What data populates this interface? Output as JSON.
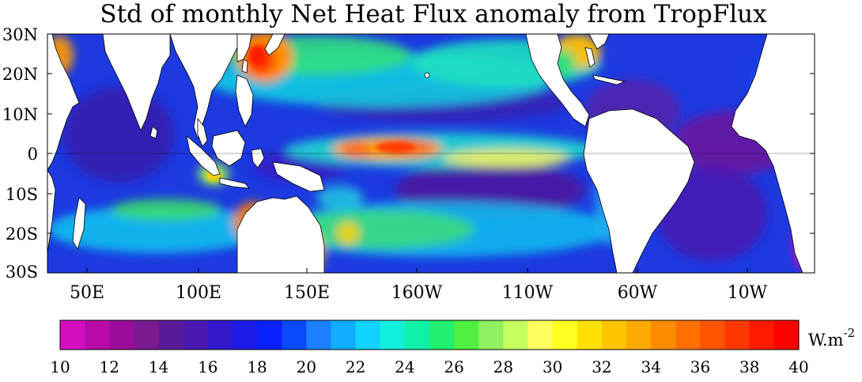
{
  "title": "Std of monthly Net Heat Flux anomaly from TropFlux",
  "map": {
    "lat_labels": [
      "30N",
      "20N",
      "10N",
      "0",
      "10S",
      "20S",
      "30S"
    ],
    "lon_labels": [
      "50E",
      "100E",
      "150E",
      "160W",
      "110W",
      "60W",
      "10W"
    ]
  },
  "colorbar": {
    "ticks": [
      "10",
      "12",
      "14",
      "16",
      "18",
      "20",
      "22",
      "24",
      "26",
      "28",
      "30",
      "32",
      "34",
      "36",
      "38",
      "40"
    ],
    "unit_main": "W.m",
    "unit_exp": "-2",
    "colors": [
      "#d40ec0",
      "#b80aa8",
      "#9c0c9c",
      "#7a1a90",
      "#5a1a98",
      "#4a18b0",
      "#3218cc",
      "#1c1ae6",
      "#0a20ff",
      "#0a4aff",
      "#1a80ff",
      "#10acff",
      "#10d4ff",
      "#10f0dc",
      "#10f0a8",
      "#20f070",
      "#50f040",
      "#90f060",
      "#c8ff60",
      "#ffff60",
      "#ffff20",
      "#ffe000",
      "#ffc400",
      "#ffaa00",
      "#ff8c00",
      "#ff7000",
      "#ff5400",
      "#ff3800",
      "#ff1a00",
      "#ff0000"
    ]
  },
  "legend_note": "Filled contour map of standard deviation (W m-2), range 10-40"
}
